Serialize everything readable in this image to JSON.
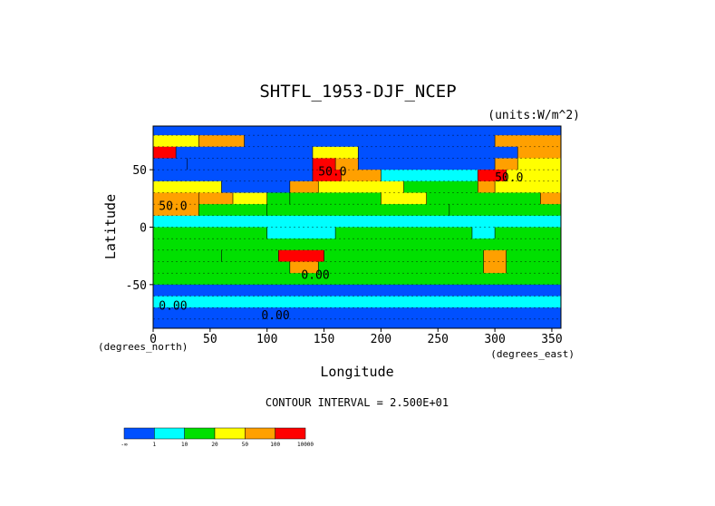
{
  "chart_data": {
    "type": "heatmap",
    "title": "SHTFL_1953-DJF_NCEP",
    "units": "(units:W/m^2)",
    "xlabel": "Longitude",
    "ylabel": "Latitude",
    "x_unit_note": "(degrees_east)",
    "y_unit_note": "(degrees_north)",
    "xlim": [
      0,
      358
    ],
    "ylim": [
      -88,
      88
    ],
    "xticks": [
      0,
      50,
      100,
      150,
      200,
      250,
      300,
      350
    ],
    "yticks": [
      50,
      0,
      -50
    ],
    "contour_interval_text": "CONTOUR INTERVAL = 2.500E+01",
    "contour_labels": [
      "50.0",
      "50.0",
      "50.0",
      "0.00",
      "0.00",
      "0.00"
    ],
    "colorbar": {
      "bounds": [
        "-∞",
        "1",
        "10",
        "20",
        "50",
        "100",
        "10000"
      ],
      "colors": [
        "#0050ff",
        "#00ffff",
        "#00e000",
        "#ffff00",
        "#ffa000",
        "#ff0000"
      ]
    },
    "dominant_values_note": "grid values in W/m^2 estimated on a 10-degree grid",
    "lat_rows": [
      85,
      75,
      65,
      55,
      45,
      35,
      25,
      15,
      5,
      -5,
      -15,
      -25,
      -35,
      -45,
      -55,
      -65,
      -75,
      -85
    ],
    "grid_cells": [
      {
        "lat": 85,
        "lon": [
          0,
          360
        ],
        "value": -10
      },
      {
        "lat": 75,
        "lon": [
          0,
          40
        ],
        "value": 30
      },
      {
        "lat": 75,
        "lon": [
          40,
          80
        ],
        "value": 60
      },
      {
        "lat": 75,
        "lon": [
          80,
          300
        ],
        "value": -10
      },
      {
        "lat": 75,
        "lon": [
          300,
          360
        ],
        "value": 60
      },
      {
        "lat": 65,
        "lon": [
          0,
          20
        ],
        "value": 120
      },
      {
        "lat": 65,
        "lon": [
          20,
          140
        ],
        "value": -20
      },
      {
        "lat": 65,
        "lon": [
          140,
          180
        ],
        "value": 40
      },
      {
        "lat": 65,
        "lon": [
          180,
          320
        ],
        "value": -10
      },
      {
        "lat": 65,
        "lon": [
          320,
          360
        ],
        "value": 80
      },
      {
        "lat": 55,
        "lon": [
          0,
          30
        ],
        "value": -5
      },
      {
        "lat": 55,
        "lon": [
          30,
          140
        ],
        "value": -15
      },
      {
        "lat": 55,
        "lon": [
          140,
          160
        ],
        "value": 150
      },
      {
        "lat": 55,
        "lon": [
          160,
          180
        ],
        "value": 80
      },
      {
        "lat": 55,
        "lon": [
          180,
          300
        ],
        "value": -10
      },
      {
        "lat": 55,
        "lon": [
          300,
          320
        ],
        "value": 60
      },
      {
        "lat": 55,
        "lon": [
          320,
          360
        ],
        "value": 40
      },
      {
        "lat": 45,
        "lon": [
          0,
          140
        ],
        "value": -5
      },
      {
        "lat": 45,
        "lon": [
          140,
          165
        ],
        "value": 120
      },
      {
        "lat": 45,
        "lon": [
          165,
          200
        ],
        "value": 60
      },
      {
        "lat": 45,
        "lon": [
          200,
          285
        ],
        "value": 5
      },
      {
        "lat": 45,
        "lon": [
          285,
          310
        ],
        "value": 120
      },
      {
        "lat": 45,
        "lon": [
          310,
          360
        ],
        "value": 40
      },
      {
        "lat": 35,
        "lon": [
          0,
          60
        ],
        "value": 30
      },
      {
        "lat": 35,
        "lon": [
          60,
          120
        ],
        "value": 0
      },
      {
        "lat": 35,
        "lon": [
          120,
          145
        ],
        "value": 60
      },
      {
        "lat": 35,
        "lon": [
          145,
          220
        ],
        "value": 30
      },
      {
        "lat": 35,
        "lon": [
          220,
          285
        ],
        "value": 15
      },
      {
        "lat": 35,
        "lon": [
          285,
          300
        ],
        "value": 60
      },
      {
        "lat": 35,
        "lon": [
          300,
          360
        ],
        "value": 30
      },
      {
        "lat": 25,
        "lon": [
          0,
          40
        ],
        "value": 60
      },
      {
        "lat": 25,
        "lon": [
          40,
          70
        ],
        "value": 60
      },
      {
        "lat": 25,
        "lon": [
          70,
          100
        ],
        "value": 30
      },
      {
        "lat": 25,
        "lon": [
          100,
          120
        ],
        "value": 15
      },
      {
        "lat": 25,
        "lon": [
          120,
          200
        ],
        "value": 15
      },
      {
        "lat": 25,
        "lon": [
          200,
          240
        ],
        "value": 30
      },
      {
        "lat": 25,
        "lon": [
          240,
          340
        ],
        "value": 15
      },
      {
        "lat": 25,
        "lon": [
          340,
          360
        ],
        "value": 60
      },
      {
        "lat": 15,
        "lon": [
          0,
          40
        ],
        "value": 80
      },
      {
        "lat": 15,
        "lon": [
          40,
          100
        ],
        "value": 15
      },
      {
        "lat": 15,
        "lon": [
          100,
          260
        ],
        "value": 15
      },
      {
        "lat": 15,
        "lon": [
          260,
          360
        ],
        "value": 15
      },
      {
        "lat": 5,
        "lon": [
          0,
          360
        ],
        "value": 5
      },
      {
        "lat": -5,
        "lon": [
          0,
          100
        ],
        "value": 15
      },
      {
        "lat": -5,
        "lon": [
          100,
          160
        ],
        "value": 5
      },
      {
        "lat": -5,
        "lon": [
          160,
          280
        ],
        "value": 15
      },
      {
        "lat": -5,
        "lon": [
          280,
          300
        ],
        "value": 5
      },
      {
        "lat": -5,
        "lon": [
          300,
          360
        ],
        "value": 15
      },
      {
        "lat": -15,
        "lon": [
          0,
          360
        ],
        "value": 15
      },
      {
        "lat": -25,
        "lon": [
          0,
          60
        ],
        "value": 15
      },
      {
        "lat": -25,
        "lon": [
          60,
          110
        ],
        "value": 15
      },
      {
        "lat": -25,
        "lon": [
          110,
          150
        ],
        "value": 200
      },
      {
        "lat": -25,
        "lon": [
          150,
          290
        ],
        "value": 15
      },
      {
        "lat": -25,
        "lon": [
          290,
          310
        ],
        "value": 80
      },
      {
        "lat": -25,
        "lon": [
          310,
          360
        ],
        "value": 15
      },
      {
        "lat": -35,
        "lon": [
          0,
          120
        ],
        "value": 15
      },
      {
        "lat": -35,
        "lon": [
          120,
          145
        ],
        "value": 60
      },
      {
        "lat": -35,
        "lon": [
          145,
          290
        ],
        "value": 15
      },
      {
        "lat": -35,
        "lon": [
          290,
          310
        ],
        "value": 60
      },
      {
        "lat": -35,
        "lon": [
          310,
          360
        ],
        "value": 15
      },
      {
        "lat": -45,
        "lon": [
          0,
          360
        ],
        "value": 15
      },
      {
        "lat": -55,
        "lon": [
          0,
          360
        ],
        "value": 0
      },
      {
        "lat": -65,
        "lon": [
          0,
          360
        ],
        "value": 5
      },
      {
        "lat": -75,
        "lon": [
          0,
          360
        ],
        "value": 0
      },
      {
        "lat": -85,
        "lon": [
          0,
          360
        ],
        "value": -5
      }
    ]
  }
}
